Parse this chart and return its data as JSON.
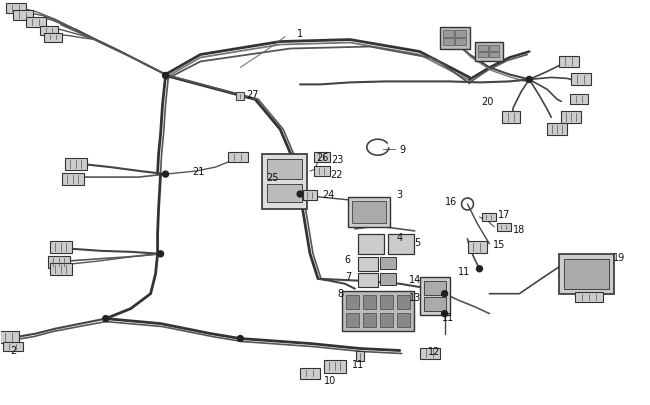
{
  "bg_color": "#ffffff",
  "line_color": "#444444",
  "figsize": [
    6.5,
    4.06
  ],
  "dpi": 100,
  "label_fontsize": 7.0,
  "text_color": "#111111"
}
